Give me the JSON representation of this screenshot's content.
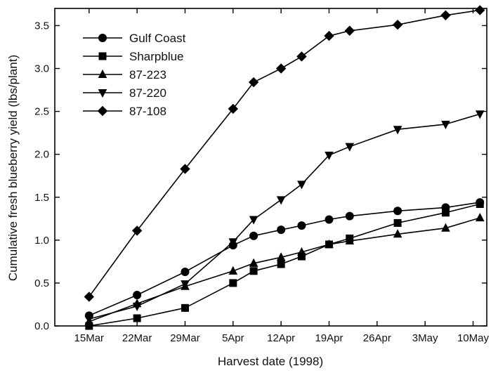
{
  "chart_data": {
    "type": "line",
    "xlabel": "Harvest date (1998)",
    "ylabel": "Cumulative fresh blueberry yield (lbs/plant)",
    "ylim": [
      0,
      3.7
    ],
    "yticks": [
      "0.0",
      "0.5",
      "1.0",
      "1.5",
      "2.0",
      "2.5",
      "3.0",
      "3.5"
    ],
    "xticks": [
      {
        "label": "15Mar",
        "date": "1998-03-15"
      },
      {
        "label": "22Mar",
        "date": "1998-03-22"
      },
      {
        "label": "29Mar",
        "date": "1998-03-29"
      },
      {
        "label": "5Apr",
        "date": "1998-04-05"
      },
      {
        "label": "12Apr",
        "date": "1998-04-12"
      },
      {
        "label": "19Apr",
        "date": "1998-04-19"
      },
      {
        "label": "26Apr",
        "date": "1998-04-26"
      },
      {
        "label": "3May",
        "date": "1998-05-03"
      },
      {
        "label": "10May",
        "date": "1998-05-10"
      }
    ],
    "xlim": [
      "1998-03-10",
      "1998-05-12"
    ],
    "legend_position": "top-left",
    "grid": false,
    "series": [
      {
        "name": "Gulf Coast",
        "marker": "circle",
        "points": [
          {
            "x": "1998-03-15",
            "y": 0.12
          },
          {
            "x": "1998-03-22",
            "y": 0.36
          },
          {
            "x": "1998-03-29",
            "y": 0.63
          },
          {
            "x": "1998-04-05",
            "y": 0.94
          },
          {
            "x": "1998-04-08",
            "y": 1.05
          },
          {
            "x": "1998-04-12",
            "y": 1.12
          },
          {
            "x": "1998-04-15",
            "y": 1.17
          },
          {
            "x": "1998-04-19",
            "y": 1.24
          },
          {
            "x": "1998-04-22",
            "y": 1.28
          },
          {
            "x": "1998-04-29",
            "y": 1.34
          },
          {
            "x": "1998-05-06",
            "y": 1.38
          },
          {
            "x": "1998-05-11",
            "y": 1.44
          }
        ]
      },
      {
        "name": "Sharpblue",
        "marker": "square",
        "points": [
          {
            "x": "1998-03-15",
            "y": 0.0
          },
          {
            "x": "1998-03-22",
            "y": 0.09
          },
          {
            "x": "1998-03-29",
            "y": 0.21
          },
          {
            "x": "1998-04-05",
            "y": 0.5
          },
          {
            "x": "1998-04-08",
            "y": 0.64
          },
          {
            "x": "1998-04-12",
            "y": 0.72
          },
          {
            "x": "1998-04-15",
            "y": 0.81
          },
          {
            "x": "1998-04-19",
            "y": 0.95
          },
          {
            "x": "1998-04-22",
            "y": 1.02
          },
          {
            "x": "1998-04-29",
            "y": 1.2
          },
          {
            "x": "1998-05-06",
            "y": 1.32
          },
          {
            "x": "1998-05-11",
            "y": 1.42
          }
        ]
      },
      {
        "name": "87-223",
        "marker": "triangle-up",
        "points": [
          {
            "x": "1998-03-15",
            "y": 0.05
          },
          {
            "x": "1998-03-22",
            "y": 0.26
          },
          {
            "x": "1998-03-29",
            "y": 0.46
          },
          {
            "x": "1998-04-05",
            "y": 0.64
          },
          {
            "x": "1998-04-08",
            "y": 0.73
          },
          {
            "x": "1998-04-12",
            "y": 0.8
          },
          {
            "x": "1998-04-15",
            "y": 0.86
          },
          {
            "x": "1998-04-19",
            "y": 0.95
          },
          {
            "x": "1998-04-22",
            "y": 0.99
          },
          {
            "x": "1998-04-29",
            "y": 1.07
          },
          {
            "x": "1998-05-06",
            "y": 1.14
          },
          {
            "x": "1998-05-11",
            "y": 1.26
          }
        ]
      },
      {
        "name": "87-220",
        "marker": "triangle-down",
        "points": [
          {
            "x": "1998-03-15",
            "y": 0.08
          },
          {
            "x": "1998-03-22",
            "y": 0.23
          },
          {
            "x": "1998-03-29",
            "y": 0.49
          },
          {
            "x": "1998-04-05",
            "y": 0.98
          },
          {
            "x": "1998-04-08",
            "y": 1.24
          },
          {
            "x": "1998-04-12",
            "y": 1.47
          },
          {
            "x": "1998-04-15",
            "y": 1.65
          },
          {
            "x": "1998-04-19",
            "y": 1.99
          },
          {
            "x": "1998-04-22",
            "y": 2.09
          },
          {
            "x": "1998-04-29",
            "y": 2.29
          },
          {
            "x": "1998-05-06",
            "y": 2.35
          },
          {
            "x": "1998-05-11",
            "y": 2.47
          }
        ]
      },
      {
        "name": "87-108",
        "marker": "diamond",
        "points": [
          {
            "x": "1998-03-15",
            "y": 0.34
          },
          {
            "x": "1998-03-22",
            "y": 1.11
          },
          {
            "x": "1998-03-29",
            "y": 1.83
          },
          {
            "x": "1998-04-05",
            "y": 2.53
          },
          {
            "x": "1998-04-08",
            "y": 2.84
          },
          {
            "x": "1998-04-12",
            "y": 3.0
          },
          {
            "x": "1998-04-15",
            "y": 3.14
          },
          {
            "x": "1998-04-19",
            "y": 3.38
          },
          {
            "x": "1998-04-22",
            "y": 3.44
          },
          {
            "x": "1998-04-29",
            "y": 3.51
          },
          {
            "x": "1998-05-06",
            "y": 3.62
          },
          {
            "x": "1998-05-11",
            "y": 3.68
          }
        ]
      }
    ]
  }
}
